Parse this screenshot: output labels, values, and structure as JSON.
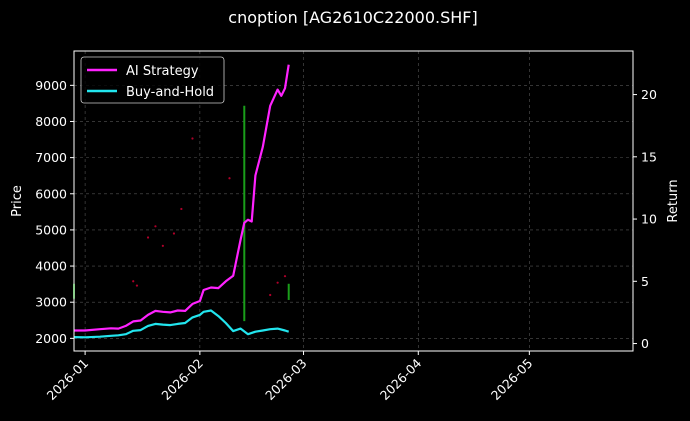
{
  "chart_data": {
    "type": "line",
    "title": "cnoption [AG2610C22000.SHF]",
    "ylabel_left": "Price",
    "ylabel_right": "Return",
    "xlim": [
      "2025-12-29",
      "2026-05-29"
    ],
    "ylim_left": [
      1650,
      9950
    ],
    "ylim_right": [
      -0.6,
      23.5
    ],
    "yticks_left": [
      2000,
      3000,
      4000,
      5000,
      6000,
      7000,
      8000,
      9000
    ],
    "yticks_right": [
      0,
      5,
      10,
      15,
      20
    ],
    "xticks": [
      "2026-01",
      "2026-02",
      "2026-03",
      "2026-04",
      "2026-05"
    ],
    "grid": true,
    "legend_position": "top-left",
    "colors": {
      "background": "#000000",
      "ai_strategy": "#ff22ff",
      "buy_and_hold": "#22e5ee",
      "signal_bar": "#1a9e1a",
      "marker": "#b0002a",
      "grid": "#555555",
      "axes": "#ffffff"
    },
    "series": [
      {
        "name": "AI Strategy",
        "axis": "right",
        "points": [
          [
            "2025-12-29",
            1.05
          ],
          [
            "2026-01-01",
            1.05
          ],
          [
            "2026-01-05",
            1.15
          ],
          [
            "2026-01-08",
            1.22
          ],
          [
            "2026-01-10",
            1.2
          ],
          [
            "2026-01-12",
            1.42
          ],
          [
            "2026-01-14",
            1.78
          ],
          [
            "2026-01-16",
            1.85
          ],
          [
            "2026-01-18",
            2.3
          ],
          [
            "2026-01-20",
            2.62
          ],
          [
            "2026-01-22",
            2.55
          ],
          [
            "2026-01-24",
            2.5
          ],
          [
            "2026-01-26",
            2.65
          ],
          [
            "2026-01-28",
            2.62
          ],
          [
            "2026-01-30",
            3.18
          ],
          [
            "2026-02-01",
            3.42
          ],
          [
            "2026-02-02",
            4.3
          ],
          [
            "2026-02-04",
            4.5
          ],
          [
            "2026-02-06",
            4.45
          ],
          [
            "2026-02-08",
            5.0
          ],
          [
            "2026-02-10",
            5.45
          ],
          [
            "2026-02-12",
            8.35
          ],
          [
            "2026-02-13",
            9.7
          ],
          [
            "2026-02-14",
            9.95
          ],
          [
            "2026-02-15",
            9.8
          ],
          [
            "2026-02-16",
            13.5
          ],
          [
            "2026-02-18",
            15.8
          ],
          [
            "2026-02-20",
            19.1
          ],
          [
            "2026-02-22",
            20.4
          ],
          [
            "2026-02-23",
            19.9
          ],
          [
            "2026-02-24",
            20.5
          ],
          [
            "2026-02-25",
            22.4
          ]
        ]
      },
      {
        "name": "Buy-and-Hold",
        "axis": "right",
        "points": [
          [
            "2025-12-29",
            0.52
          ],
          [
            "2026-01-01",
            0.5
          ],
          [
            "2026-01-05",
            0.55
          ],
          [
            "2026-01-08",
            0.62
          ],
          [
            "2026-01-10",
            0.66
          ],
          [
            "2026-01-12",
            0.75
          ],
          [
            "2026-01-14",
            1.02
          ],
          [
            "2026-01-16",
            1.08
          ],
          [
            "2026-01-18",
            1.42
          ],
          [
            "2026-01-20",
            1.58
          ],
          [
            "2026-01-22",
            1.52
          ],
          [
            "2026-01-24",
            1.48
          ],
          [
            "2026-01-26",
            1.58
          ],
          [
            "2026-01-28",
            1.65
          ],
          [
            "2026-01-30",
            2.1
          ],
          [
            "2026-02-01",
            2.3
          ],
          [
            "2026-02-02",
            2.55
          ],
          [
            "2026-02-04",
            2.65
          ],
          [
            "2026-02-06",
            2.2
          ],
          [
            "2026-02-08",
            1.65
          ],
          [
            "2026-02-10",
            1.0
          ],
          [
            "2026-02-12",
            1.2
          ],
          [
            "2026-02-14",
            0.75
          ],
          [
            "2026-02-16",
            0.95
          ],
          [
            "2026-02-18",
            1.05
          ],
          [
            "2026-02-20",
            1.15
          ],
          [
            "2026-02-22",
            1.2
          ],
          [
            "2026-02-24",
            1.05
          ],
          [
            "2026-02-25",
            0.95
          ]
        ]
      }
    ],
    "signal_bars": [
      {
        "date": "2025-12-29",
        "from": 3.6,
        "to": 4.8
      },
      {
        "date": "2026-02-13",
        "from": 1.8,
        "to": 19.1
      },
      {
        "date": "2026-02-25",
        "from": 3.5,
        "to": 4.8
      }
    ],
    "scatter_points": [
      [
        "2026-01-14",
        3580
      ],
      [
        "2026-01-15",
        3460
      ],
      [
        "2026-01-18",
        4790
      ],
      [
        "2026-01-20",
        5100
      ],
      [
        "2026-01-22",
        4560
      ],
      [
        "2026-01-25",
        4900
      ],
      [
        "2026-01-27",
        5580
      ],
      [
        "2026-01-30",
        7530
      ],
      [
        "2026-02-09",
        6430
      ],
      [
        "2026-02-20",
        3200
      ],
      [
        "2026-02-22",
        3540
      ],
      [
        "2026-02-24",
        3720
      ]
    ]
  }
}
